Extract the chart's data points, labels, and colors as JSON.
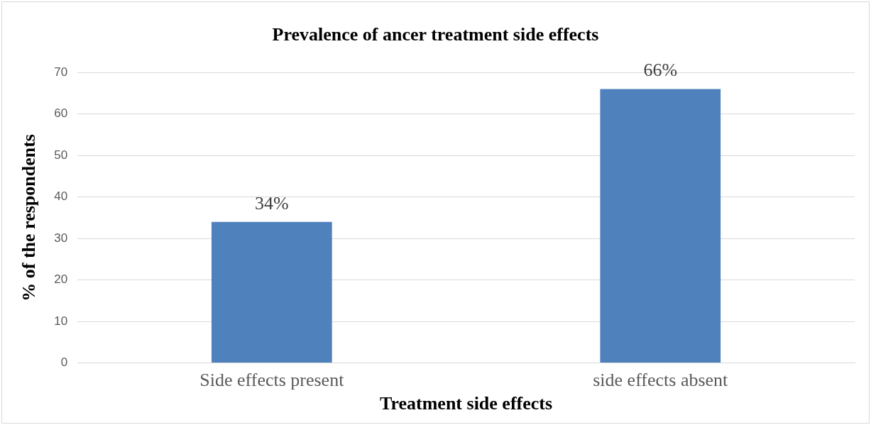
{
  "chart_data": {
    "type": "bar",
    "title": "Prevalence of ancer treatment side effects",
    "xlabel": "Treatment side effects",
    "ylabel": "% of the respondents",
    "categories": [
      "Side effects present",
      "side effects absent"
    ],
    "values": [
      34,
      66
    ],
    "value_labels": [
      "34%",
      "66%"
    ],
    "color": "#4f81bd",
    "ylim": [
      0,
      70
    ],
    "yticks": [
      0,
      10,
      20,
      30,
      40,
      50,
      60,
      70
    ],
    "grid": "y",
    "legend": false
  }
}
